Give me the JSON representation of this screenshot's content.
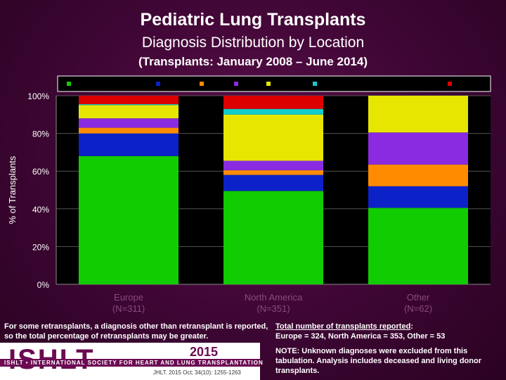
{
  "titles": {
    "title": "Pediatric Lung Transplants",
    "subtitle": "Diagnosis Distribution by Location",
    "period": "(Transplants: January 2008 – June 2014)"
  },
  "chart_data": {
    "type": "bar",
    "stacked": true,
    "ylabel": "% of Transplants",
    "ylim": [
      0,
      100
    ],
    "yticks": [
      "0%",
      "20%",
      "40%",
      "60%",
      "80%",
      "100%"
    ],
    "categories": [
      "Europe (N=311)",
      "North America (N=351)",
      "Other (N=62)"
    ],
    "category_lines": [
      [
        "Europe",
        "(N=311)"
      ],
      [
        "North America",
        "(N=351)"
      ],
      [
        "Other",
        "(N=62)"
      ]
    ],
    "legend_position": "top",
    "series": [
      {
        "color": "#11cc00",
        "values": [
          68,
          49.5,
          40.5
        ]
      },
      {
        "color": "#0c22c8",
        "values": [
          12,
          8.5,
          11.5
        ]
      },
      {
        "color": "#ff8c00",
        "values": [
          3,
          2.5,
          11.5
        ]
      },
      {
        "color": "#8a2be2",
        "values": [
          5,
          5,
          17
        ]
      },
      {
        "color": "#e6e600",
        "values": [
          7,
          24.5,
          19.5
        ]
      },
      {
        "color": "#11cccc",
        "values": [
          0.5,
          3,
          0
        ]
      },
      {
        "color": "#dd0000",
        "values": [
          4.5,
          7,
          0
        ]
      }
    ]
  },
  "notes": {
    "retransplant": "For some retransplants, a diagnosis other than retransplant is reported, so the total percentage of retransplants may be greater.",
    "total_label": "Total number of transplants reported",
    "total_colon": ":",
    "total_values": "Europe = 324, North America = 353, Other = 53",
    "unknown": "NOTE: Unknown diagnoses were excluded from this tabulation. Analysis includes deceased and living donor transplants."
  },
  "logo": {
    "name": "ISHLT",
    "society": "ISHLT • INTERNATIONAL SOCIETY FOR HEART AND LUNG TRANSPLANTATION",
    "year": "2015",
    "citation": "JHLT. 2015 Oct; 34(10): 1255-1263"
  }
}
